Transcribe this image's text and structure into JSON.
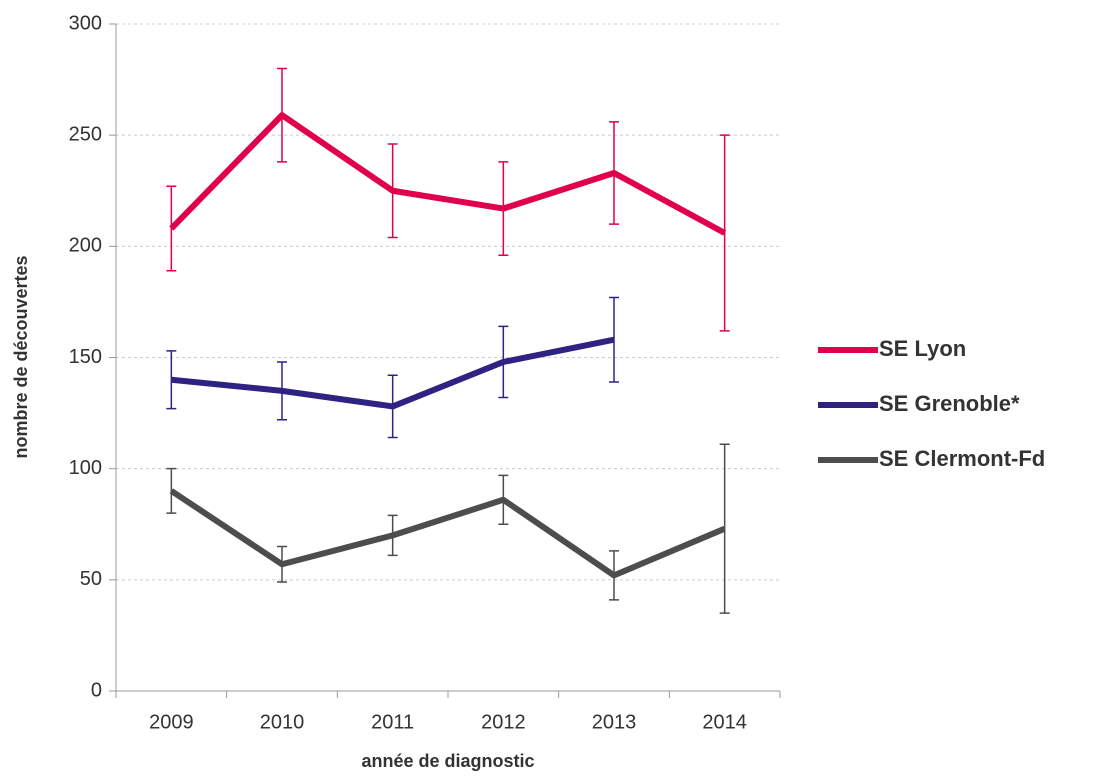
{
  "chart_data": {
    "type": "line",
    "x_label": "année de diagnostic",
    "y_label": "nombre de découvertes",
    "categories": [
      "2009",
      "2010",
      "2011",
      "2012",
      "2013",
      "2014"
    ],
    "series": [
      {
        "name": "SE Lyon",
        "color": "#e0004d",
        "values": [
          208,
          259,
          225,
          217,
          233,
          206
        ],
        "errors": [
          19,
          21,
          21,
          21,
          23,
          44
        ]
      },
      {
        "name": "SE Grenoble*",
        "color": "#2e2383",
        "values": [
          140,
          135,
          128,
          148,
          158,
          null
        ],
        "errors": [
          13,
          13,
          14,
          16,
          19,
          null
        ]
      },
      {
        "name": "SE Clermont-Fd",
        "color": "#4d4d4d",
        "values": [
          90,
          57,
          70,
          86,
          52,
          73
        ],
        "errors": [
          10,
          8,
          9,
          11,
          11,
          38
        ]
      }
    ],
    "ylim": [
      0,
      300
    ],
    "yticks": [
      0,
      50,
      100,
      150,
      200,
      250,
      300
    ],
    "grid": true,
    "legend": "right"
  }
}
